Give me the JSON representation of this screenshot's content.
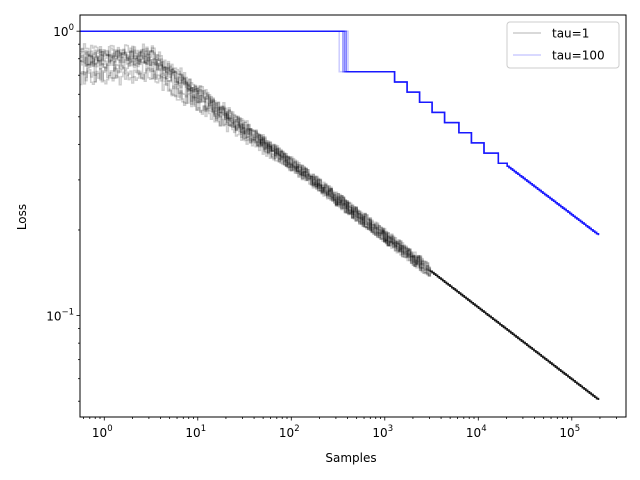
{
  "chart_data": {
    "type": "line",
    "xscale": "log",
    "yscale": "log",
    "xlabel": "Samples",
    "ylabel": "Loss",
    "xlim": [
      0.55,
      380000
    ],
    "ylim": [
      0.044,
      1.14
    ],
    "legend_position": "top-right",
    "x_ticks": [
      {
        "base": "10",
        "exp": "0",
        "value": 1
      },
      {
        "base": "10",
        "exp": "1",
        "value": 10
      },
      {
        "base": "10",
        "exp": "2",
        "value": 100
      },
      {
        "base": "10",
        "exp": "3",
        "value": 1000
      },
      {
        "base": "10",
        "exp": "4",
        "value": 10000
      },
      {
        "base": "10",
        "exp": "5",
        "value": 100000
      }
    ],
    "y_ticks": [
      {
        "base": "10",
        "exp": "0",
        "value": 1
      },
      {
        "base": "10",
        "exp": "−1",
        "value": 0.1
      }
    ],
    "groups": [
      {
        "name": "tau=1",
        "color": "#000000",
        "alpha": 0.2,
        "n_runs": 10,
        "start_loss": 0.95,
        "loss_at_100": 0.34,
        "loss_at_1000": 0.19,
        "final_x": 200000,
        "final_loss": 0.05
      },
      {
        "name": "tau=100",
        "color": "#0000ff",
        "alpha": 0.2,
        "n_runs": 10,
        "start_loss": 1.0,
        "plateau_until": 350,
        "loss_at_1000": 0.73,
        "loss_at_10000": 0.4,
        "final_x": 200000,
        "final_loss": 0.19
      }
    ],
    "legend": [
      {
        "label": "tau=1",
        "color": "#000000"
      },
      {
        "label": "tau=100",
        "color": "#0000ff"
      }
    ]
  }
}
